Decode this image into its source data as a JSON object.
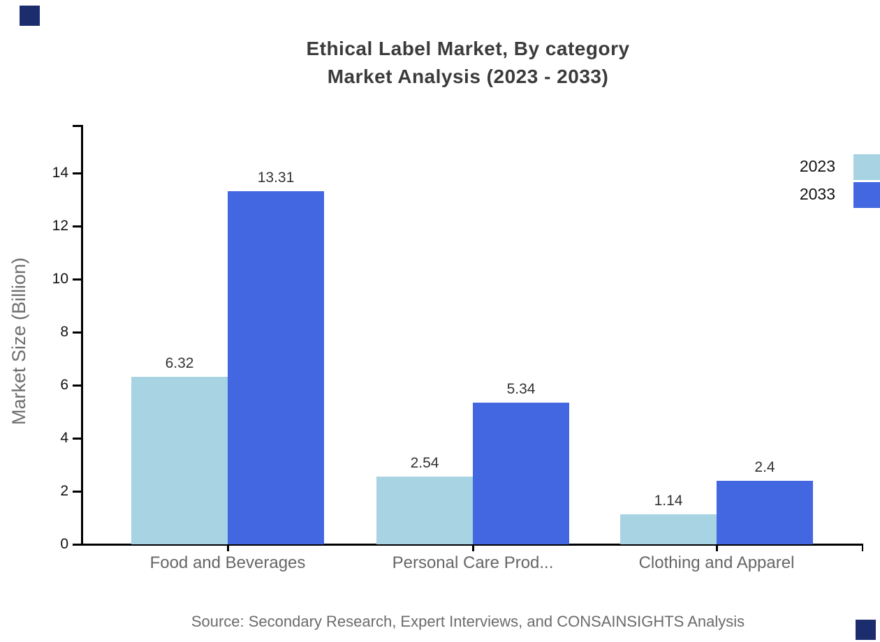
{
  "chart_data": {
    "type": "bar",
    "title": "Ethical Label Market, By category",
    "subtitle": "Market Analysis (2023 - 2033)",
    "categories": [
      "Food and Beverages",
      "Personal Care Prod...",
      "Clothing and Apparel"
    ],
    "series": [
      {
        "name": "2023",
        "color": "#A7D3E3",
        "values": [
          6.32,
          2.54,
          1.14
        ],
        "value_labels": [
          "6.32",
          "2.54",
          "1.14"
        ]
      },
      {
        "name": "2033",
        "color": "#4267E0",
        "values": [
          13.31,
          5.34,
          2.4
        ],
        "value_labels": [
          "13.31",
          "5.34",
          "2.4"
        ]
      }
    ],
    "xlabel": "",
    "ylabel": "Market Size (Billion)",
    "ytick_labels": [
      "0",
      "2",
      "4",
      "6",
      "8",
      "10",
      "12",
      "14"
    ],
    "ytick_values": [
      0,
      2,
      4,
      6,
      8,
      10,
      12,
      14
    ],
    "ylim": [
      0,
      15.8
    ],
    "grid": false,
    "legend_position": "top-right",
    "source": "Source: Secondary Research, Expert Interviews, and CONSAINSIGHTS Analysis"
  },
  "colors": {
    "brand_square": "#1C2D6E",
    "axis": "#000000",
    "series_2023": "#A7D3E3",
    "series_2033": "#4267E0"
  }
}
